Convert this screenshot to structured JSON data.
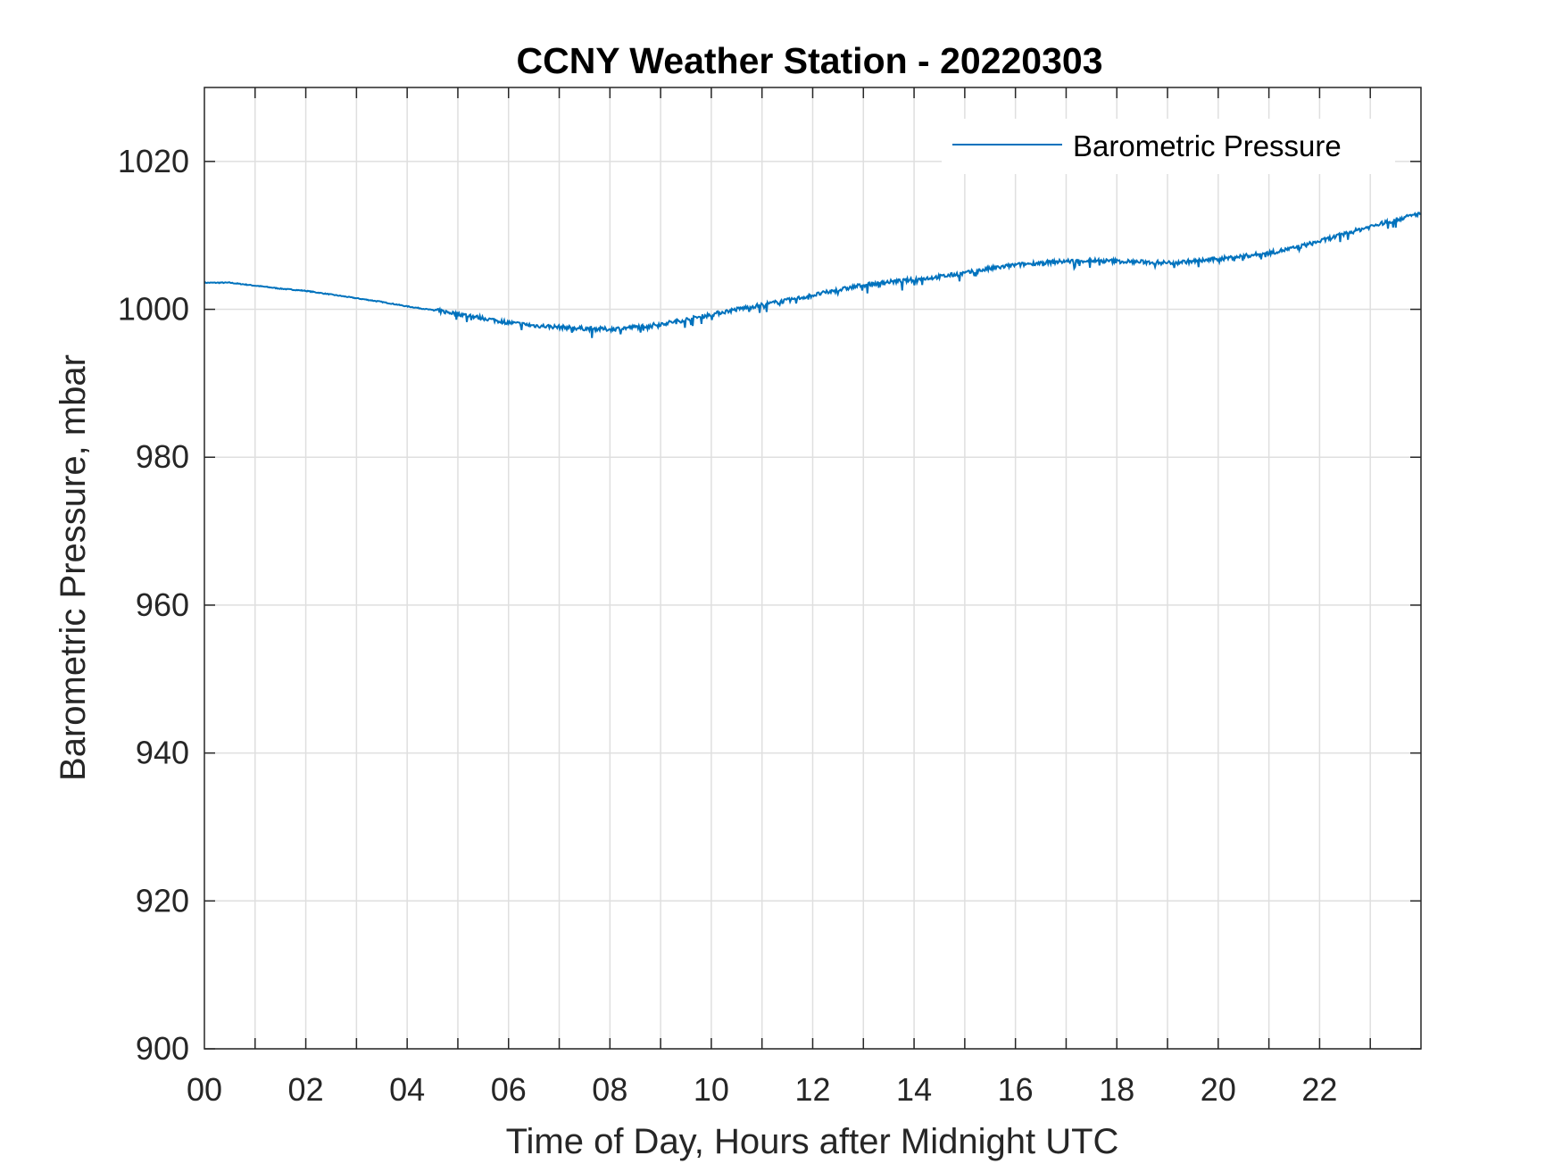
{
  "chart_data": {
    "type": "line",
    "title": "CCNY Weather Station - 20220303",
    "xlabel": "Time of Day, Hours after Midnight UTC",
    "ylabel": "Barometric Pressure, mbar",
    "xlim": [
      0,
      24
    ],
    "ylim": [
      900,
      1030
    ],
    "x_ticks": [
      "00",
      "02",
      "04",
      "06",
      "08",
      "10",
      "12",
      "14",
      "16",
      "18",
      "20",
      "22"
    ],
    "y_ticks": [
      "900",
      "920",
      "940",
      "960",
      "980",
      "1000",
      "1020"
    ],
    "grid": true,
    "legend_position": "top-right",
    "series": [
      {
        "name": "Barometric Pressure",
        "color": "#0072BD",
        "x": [
          0,
          0.5,
          1,
          1.5,
          2,
          2.5,
          3,
          3.5,
          4,
          4.5,
          5,
          5.5,
          6,
          6.5,
          7,
          7.5,
          8,
          8.5,
          9,
          9.5,
          10,
          10.5,
          11,
          11.5,
          12,
          12.5,
          13,
          13.5,
          14,
          14.5,
          15,
          15.5,
          16,
          16.5,
          17,
          17.5,
          18,
          18.5,
          19,
          19.5,
          20,
          20.5,
          21,
          21.5,
          22,
          22.5,
          23,
          23.5,
          24
        ],
        "y": [
          1003.6,
          1003.6,
          1003.2,
          1002.8,
          1002.5,
          1002.0,
          1001.5,
          1001.0,
          1000.4,
          999.9,
          999.4,
          998.8,
          998.2,
          997.8,
          997.6,
          997.4,
          997.3,
          997.6,
          998.0,
          998.6,
          999.3,
          1000.0,
          1000.6,
          1001.2,
          1001.9,
          1002.6,
          1003.3,
          1003.7,
          1004.0,
          1004.4,
          1004.9,
          1005.5,
          1006.0,
          1006.3,
          1006.5,
          1006.6,
          1006.5,
          1006.4,
          1006.3,
          1006.5,
          1006.8,
          1007.2,
          1007.6,
          1008.3,
          1009.2,
          1010.2,
          1011.2,
          1012.1,
          1013.0
        ]
      }
    ]
  }
}
